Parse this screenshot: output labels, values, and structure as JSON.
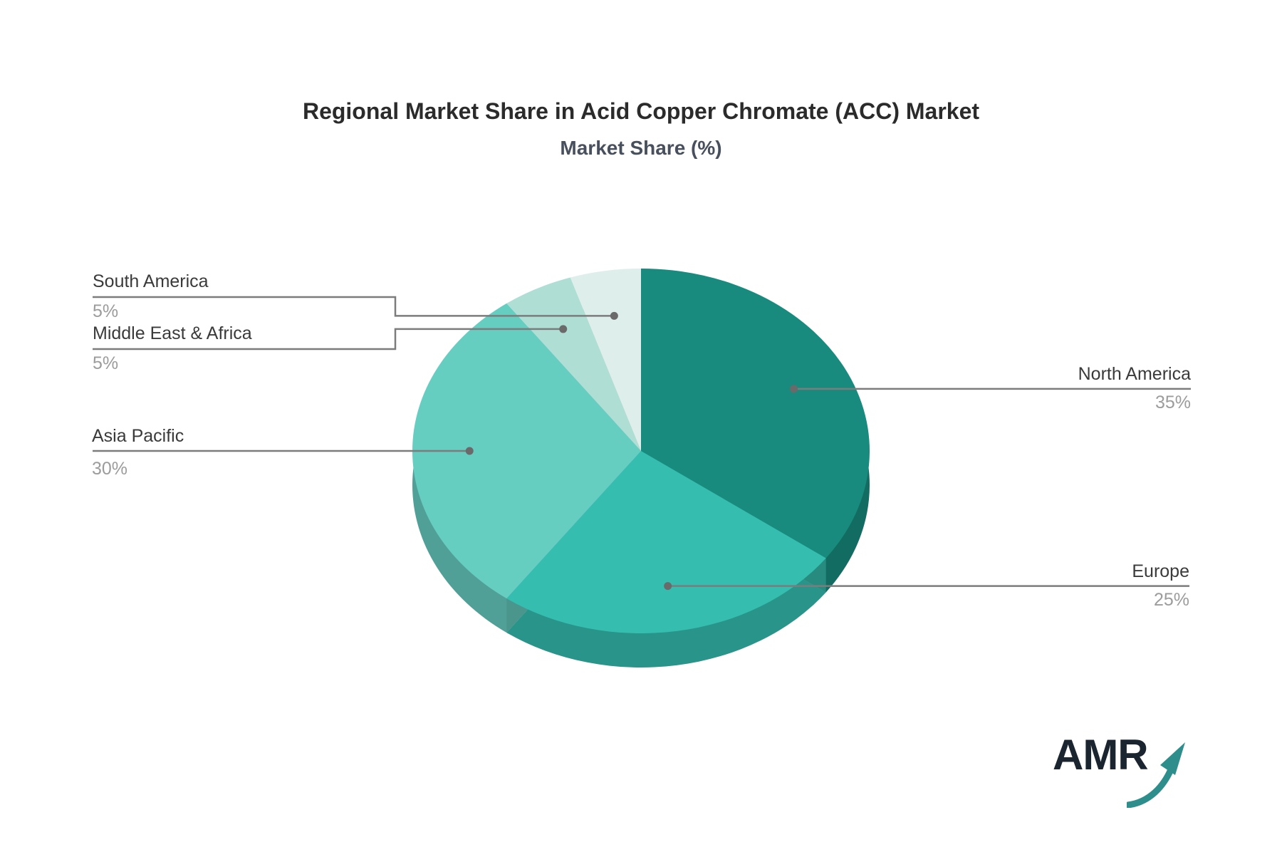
{
  "chart": {
    "title": "Regional Market Share in Acid Copper Chromate (ACC) Market",
    "subtitle": "Market Share (%)"
  },
  "chart_data": {
    "type": "pie",
    "style": "3d",
    "title": "Regional Market Share in Acid Copper Chromate (ACC) Market",
    "subtitle": "Market Share (%)",
    "unit": "%",
    "start_angle_deg": 90,
    "direction": "clockwise",
    "legend_position": "callout-labels",
    "slices": [
      {
        "label": "North America",
        "value": 35,
        "display": "35%",
        "color": "#188b7e"
      },
      {
        "label": "Europe",
        "value": 25,
        "display": "25%",
        "color": "#35beaf"
      },
      {
        "label": "Asia Pacific",
        "value": 30,
        "display": "30%",
        "color": "#66cdc1"
      },
      {
        "label": "Middle East & Africa",
        "value": 5,
        "display": "5%",
        "color": "#aeded4"
      },
      {
        "label": "South America",
        "value": 5,
        "display": "5%",
        "color": "#deeeeb"
      }
    ],
    "leader_line_color": "#7c7c7c",
    "leader_dot_color": "#6a6a6a",
    "label_color": "#3a3a3a",
    "pct_color": "#9c9c9c",
    "background_color": "#ffffff"
  },
  "logo": {
    "text": "AMR",
    "arrow_icon_color": "#2e8e8c"
  }
}
